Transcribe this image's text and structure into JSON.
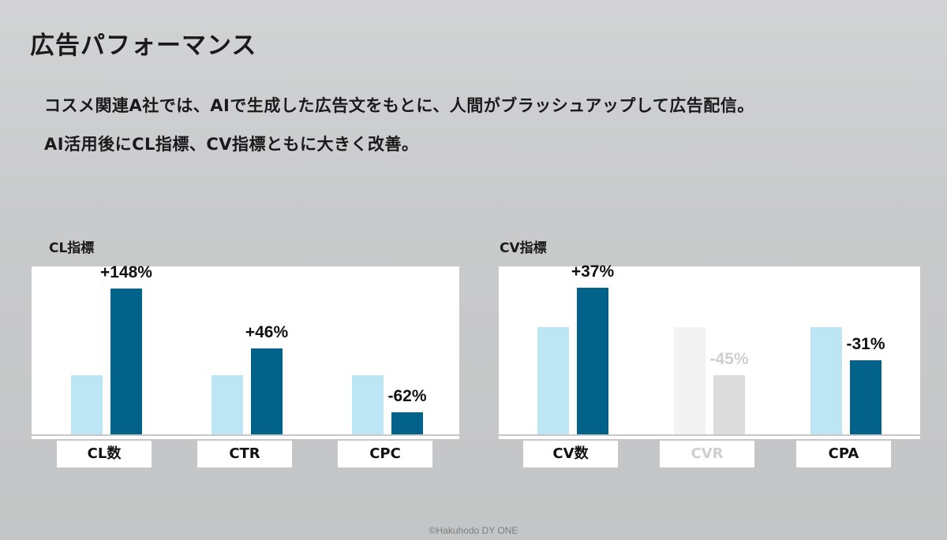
{
  "title": "広告パフォーマンス",
  "description": [
    "コスメ関連A社では、AIで生成した広告文をもとに、人間がブラッシュアップして広告配信。",
    "AI活用後にCL指標、CV指標ともに大きく改善。"
  ],
  "footer": "©Hakuhodo DY ONE",
  "colors": {
    "before": "#bde6f5",
    "after": "#03628a",
    "dim_before": "#f3f3f3",
    "dim_after": "#dcdcdc"
  },
  "chart_data": [
    {
      "type": "bar",
      "title": "CL指標",
      "categories": [
        "CL数",
        "CTR",
        "CPC"
      ],
      "series": [
        {
          "values": [
            1.0,
            1.0,
            1.0
          ]
        },
        {
          "values": [
            2.48,
            1.46,
            0.38
          ]
        }
      ],
      "data_labels": [
        "+148%",
        "+46%",
        "-62%"
      ],
      "highlighted": [
        true,
        true,
        true
      ],
      "ylim": [
        0,
        2.6
      ]
    },
    {
      "type": "bar",
      "title": "CV指標",
      "categories": [
        "CV数",
        "CVR",
        "CPA"
      ],
      "series": [
        {
          "values": [
            1.0,
            1.0,
            1.0
          ]
        },
        {
          "values": [
            1.37,
            0.55,
            0.69
          ]
        }
      ],
      "data_labels": [
        "+37%",
        "-45%",
        "-31%"
      ],
      "highlighted": [
        true,
        false,
        true
      ],
      "ylim": [
        0,
        1.45
      ]
    }
  ]
}
